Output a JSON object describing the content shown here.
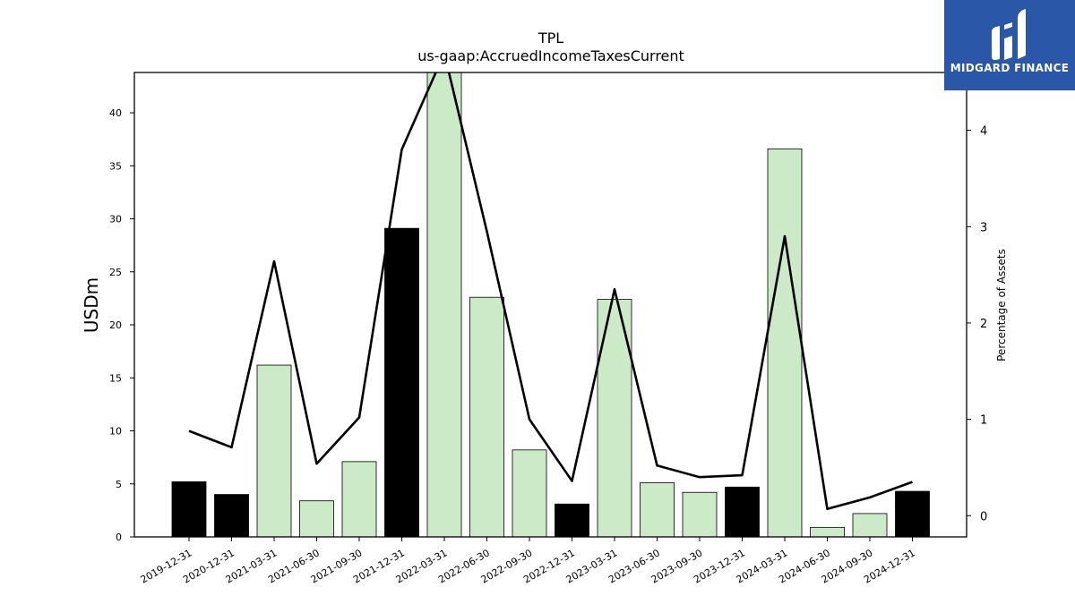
{
  "chart_data": {
    "type": "bar",
    "title": "TPL",
    "subtitle": "us-gaap:AccruedIncomeTaxesCurrent",
    "ylabel": "USDm",
    "y2label": "Percentage of Assets",
    "categories": [
      "2019-12-31",
      "2020-12-31",
      "2021-03-31",
      "2021-06-30",
      "2021-09-30",
      "2021-12-31",
      "2022-03-31",
      "2022-06-30",
      "2022-09-30",
      "2022-12-31",
      "2023-03-31",
      "2023-06-30",
      "2023-09-30",
      "2023-12-31",
      "2024-03-31",
      "2024-06-30",
      "2024-09-30",
      "2024-12-31"
    ],
    "series": [
      {
        "type": "bar",
        "values": [
          5.2,
          4.0,
          16.2,
          3.4,
          7.1,
          29.1,
          44.5,
          22.6,
          8.2,
          3.1,
          22.4,
          5.1,
          4.2,
          4.7,
          36.6,
          0.9,
          2.2,
          4.3
        ],
        "colors": [
          "#000000",
          "#000000",
          "#cdeac8",
          "#cdeac8",
          "#cdeac8",
          "#000000",
          "#cdeac8",
          "#cdeac8",
          "#cdeac8",
          "#000000",
          "#cdeac8",
          "#cdeac8",
          "#cdeac8",
          "#000000",
          "#cdeac8",
          "#cdeac8",
          "#cdeac8",
          "#000000"
        ]
      },
      {
        "type": "line",
        "axis": "right",
        "color": "#000000",
        "values": [
          0.88,
          0.71,
          2.64,
          0.54,
          1.02,
          3.8,
          4.8,
          2.95,
          1.0,
          0.36,
          2.35,
          0.52,
          0.4,
          0.42,
          2.9,
          0.07,
          0.19,
          0.35
        ]
      }
    ],
    "ylim": [
      0,
      43.8
    ],
    "yticks": [
      0,
      5,
      10,
      15,
      20,
      25,
      30,
      35,
      40
    ],
    "y2lim": [
      -0.22,
      4.6
    ],
    "y2ticks": [
      0,
      1,
      2,
      3,
      4
    ],
    "grid": false,
    "legend": "none"
  },
  "logo": {
    "text": "MIDGARD FINANCE",
    "bg": "#2a57a8"
  }
}
